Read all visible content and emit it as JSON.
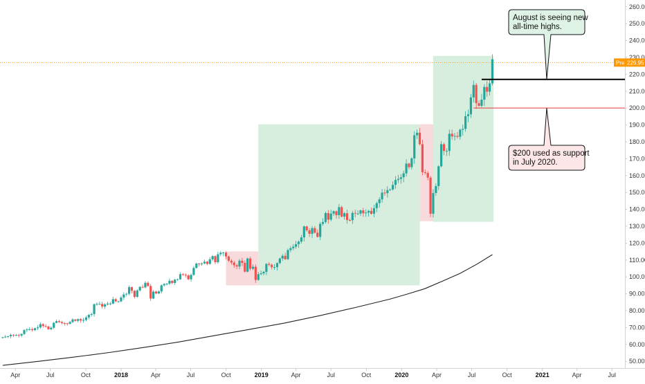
{
  "chart_data": {
    "type": "candlestick",
    "title": "",
    "xlabel": "",
    "ylabel": "",
    "y_range": [
      46,
      264
    ],
    "x_range": [
      "2017-02-20",
      "2021-09-25"
    ],
    "y_ticks": [
      "50.00",
      "60.00",
      "70.00",
      "80.00",
      "90.00",
      "100.00",
      "110.00",
      "120.00",
      "130.00",
      "140.00",
      "150.00",
      "160.00",
      "170.00",
      "180.00",
      "190.00",
      "200.00",
      "210.00",
      "220.00",
      "230.00",
      "240.00",
      "250.00",
      "260.00"
    ],
    "x_ticks": [
      {
        "label": "Apr",
        "date": "2017-04-01",
        "bold": false
      },
      {
        "label": "Jul",
        "date": "2017-07-01",
        "bold": false
      },
      {
        "label": "Oct",
        "date": "2017-10-01",
        "bold": false
      },
      {
        "label": "2018",
        "date": "2018-01-01",
        "bold": true
      },
      {
        "label": "Apr",
        "date": "2018-04-01",
        "bold": false
      },
      {
        "label": "Jul",
        "date": "2018-07-01",
        "bold": false
      },
      {
        "label": "Oct",
        "date": "2018-10-01",
        "bold": false
      },
      {
        "label": "2019",
        "date": "2019-01-01",
        "bold": true
      },
      {
        "label": "Apr",
        "date": "2019-04-01",
        "bold": false
      },
      {
        "label": "Jul",
        "date": "2019-07-01",
        "bold": false
      },
      {
        "label": "Oct",
        "date": "2019-10-01",
        "bold": false
      },
      {
        "label": "2020",
        "date": "2020-01-01",
        "bold": true
      },
      {
        "label": "Apr",
        "date": "2020-04-01",
        "bold": false
      },
      {
        "label": "Jul",
        "date": "2020-07-01",
        "bold": false
      },
      {
        "label": "Oct",
        "date": "2020-10-01",
        "bold": false
      },
      {
        "label": "2021",
        "date": "2021-01-01",
        "bold": true
      },
      {
        "label": "Apr",
        "date": "2021-04-01",
        "bold": false
      },
      {
        "label": "Jul",
        "date": "2021-07-01",
        "bold": false
      }
    ],
    "price_series": [
      [
        "2017-02-27",
        64.3
      ],
      [
        "2017-03-06",
        64.6
      ],
      [
        "2017-03-13",
        64.9
      ],
      [
        "2017-03-20",
        65.6
      ],
      [
        "2017-03-27",
        65.4
      ],
      [
        "2017-04-03",
        65.6
      ],
      [
        "2017-04-10",
        65.3
      ],
      [
        "2017-04-17",
        66.2
      ],
      [
        "2017-04-24",
        68.5
      ],
      [
        "2017-05-01",
        68.9
      ],
      [
        "2017-05-08",
        69.0
      ],
      [
        "2017-05-15",
        68.5
      ],
      [
        "2017-05-22",
        69.6
      ],
      [
        "2017-05-29",
        70.1
      ],
      [
        "2017-06-05",
        72.0
      ],
      [
        "2017-06-12",
        70.9
      ],
      [
        "2017-06-19",
        70.6
      ],
      [
        "2017-06-26",
        69.0
      ],
      [
        "2017-07-03",
        69.9
      ],
      [
        "2017-07-10",
        72.8
      ],
      [
        "2017-07-17",
        73.8
      ],
      [
        "2017-07-24",
        73.2
      ],
      [
        "2017-07-31",
        72.6
      ],
      [
        "2017-08-07",
        72.5
      ],
      [
        "2017-08-14",
        72.3
      ],
      [
        "2017-08-21",
        73.3
      ],
      [
        "2017-08-28",
        74.8
      ],
      [
        "2017-09-04",
        74.0
      ],
      [
        "2017-09-11",
        75.0
      ],
      [
        "2017-09-18",
        74.2
      ],
      [
        "2017-09-25",
        74.5
      ],
      [
        "2017-10-02",
        76.0
      ],
      [
        "2017-10-09",
        77.5
      ],
      [
        "2017-10-16",
        78.0
      ],
      [
        "2017-10-23",
        83.8
      ],
      [
        "2017-10-30",
        84.0
      ],
      [
        "2017-11-06",
        84.0
      ],
      [
        "2017-11-13",
        82.4
      ],
      [
        "2017-11-20",
        83.7
      ],
      [
        "2017-11-27",
        84.2
      ],
      [
        "2017-12-04",
        84.2
      ],
      [
        "2017-12-11",
        86.8
      ],
      [
        "2017-12-18",
        85.5
      ],
      [
        "2017-12-25",
        85.5
      ],
      [
        "2018-01-01",
        87.8
      ],
      [
        "2018-01-08",
        89.6
      ],
      [
        "2018-01-15",
        90.0
      ],
      [
        "2018-01-22",
        93.9
      ],
      [
        "2018-01-29",
        91.8
      ],
      [
        "2018-02-05",
        88.2
      ],
      [
        "2018-02-12",
        92.0
      ],
      [
        "2018-02-19",
        94.1
      ],
      [
        "2018-02-26",
        93.8
      ],
      [
        "2018-03-05",
        96.5
      ],
      [
        "2018-03-12",
        94.6
      ],
      [
        "2018-03-19",
        87.2
      ],
      [
        "2018-03-26",
        91.3
      ],
      [
        "2018-04-02",
        90.2
      ],
      [
        "2018-04-09",
        91.4
      ],
      [
        "2018-04-16",
        95.0
      ],
      [
        "2018-04-23",
        95.8
      ],
      [
        "2018-04-30",
        96.0
      ],
      [
        "2018-05-07",
        97.7
      ],
      [
        "2018-05-14",
        96.4
      ],
      [
        "2018-05-21",
        98.4
      ],
      [
        "2018-05-28",
        98.6
      ],
      [
        "2018-06-04",
        101.6
      ],
      [
        "2018-06-11",
        101.3
      ],
      [
        "2018-06-18",
        100.9
      ],
      [
        "2018-06-25",
        98.6
      ],
      [
        "2018-07-02",
        101.2
      ],
      [
        "2018-07-09",
        105.3
      ],
      [
        "2018-07-16",
        107.9
      ],
      [
        "2018-07-23",
        107.7
      ],
      [
        "2018-07-30",
        108.0
      ],
      [
        "2018-08-06",
        109.0
      ],
      [
        "2018-08-13",
        107.7
      ],
      [
        "2018-08-20",
        110.4
      ],
      [
        "2018-08-27",
        112.3
      ],
      [
        "2018-09-03",
        108.7
      ],
      [
        "2018-09-10",
        113.4
      ],
      [
        "2018-09-17",
        114.3
      ],
      [
        "2018-09-24",
        114.4
      ],
      [
        "2018-10-01",
        112.1
      ],
      [
        "2018-10-08",
        109.6
      ],
      [
        "2018-10-15",
        108.5
      ],
      [
        "2018-10-22",
        106.9
      ],
      [
        "2018-10-29",
        106.2
      ],
      [
        "2018-11-05",
        109.6
      ],
      [
        "2018-11-12",
        108.3
      ],
      [
        "2018-11-19",
        103.1
      ],
      [
        "2018-11-26",
        110.9
      ],
      [
        "2018-12-03",
        104.8
      ],
      [
        "2018-12-10",
        106.0
      ],
      [
        "2018-12-17",
        98.2
      ],
      [
        "2018-12-24",
        101.6
      ],
      [
        "2018-12-31",
        102.1
      ],
      [
        "2019-01-07",
        103.0
      ],
      [
        "2019-01-14",
        107.7
      ],
      [
        "2019-01-21",
        107.2
      ],
      [
        "2019-01-28",
        105.7
      ],
      [
        "2019-02-04",
        105.8
      ],
      [
        "2019-02-11",
        108.2
      ],
      [
        "2019-02-18",
        110.9
      ],
      [
        "2019-02-25",
        112.5
      ],
      [
        "2019-03-04",
        110.5
      ],
      [
        "2019-03-11",
        115.9
      ],
      [
        "2019-03-18",
        117.0
      ],
      [
        "2019-03-25",
        117.9
      ],
      [
        "2019-04-01",
        119.4
      ],
      [
        "2019-04-08",
        120.9
      ],
      [
        "2019-04-15",
        123.4
      ],
      [
        "2019-04-22",
        129.9
      ],
      [
        "2019-04-29",
        127.6
      ],
      [
        "2019-05-06",
        125.5
      ],
      [
        "2019-05-13",
        128.9
      ],
      [
        "2019-05-20",
        126.2
      ],
      [
        "2019-05-27",
        123.7
      ],
      [
        "2019-06-03",
        131.4
      ],
      [
        "2019-06-10",
        132.5
      ],
      [
        "2019-06-17",
        137.8
      ],
      [
        "2019-06-24",
        133.9
      ],
      [
        "2019-07-01",
        137.5
      ],
      [
        "2019-07-08",
        138.9
      ],
      [
        "2019-07-15",
        136.6
      ],
      [
        "2019-07-22",
        141.3
      ],
      [
        "2019-07-29",
        135.7
      ],
      [
        "2019-08-05",
        137.7
      ],
      [
        "2019-08-12",
        133.7
      ],
      [
        "2019-08-19",
        133.6
      ],
      [
        "2019-08-26",
        137.9
      ],
      [
        "2019-09-02",
        137.5
      ],
      [
        "2019-09-09",
        137.5
      ],
      [
        "2019-09-16",
        139.4
      ],
      [
        "2019-09-23",
        137.7
      ],
      [
        "2019-09-30",
        138.1
      ],
      [
        "2019-10-07",
        139.1
      ],
      [
        "2019-10-14",
        137.4
      ],
      [
        "2019-10-21",
        140.7
      ],
      [
        "2019-10-28",
        143.7
      ],
      [
        "2019-11-04",
        145.9
      ],
      [
        "2019-11-11",
        149.9
      ],
      [
        "2019-11-18",
        149.6
      ],
      [
        "2019-11-25",
        151.4
      ],
      [
        "2019-12-02",
        151.8
      ],
      [
        "2019-12-09",
        154.5
      ],
      [
        "2019-12-16",
        157.4
      ],
      [
        "2019-12-23",
        158.0
      ],
      [
        "2019-12-30",
        159.0
      ],
      [
        "2020-01-06",
        161.3
      ],
      [
        "2020-01-13",
        167.1
      ],
      [
        "2020-01-20",
        165.0
      ],
      [
        "2020-01-27",
        170.2
      ],
      [
        "2020-02-03",
        183.9
      ],
      [
        "2020-02-10",
        185.4
      ],
      [
        "2020-02-17",
        178.6
      ],
      [
        "2020-02-24",
        162.0
      ],
      [
        "2020-03-02",
        161.6
      ],
      [
        "2020-03-09",
        158.8
      ],
      [
        "2020-03-16",
        137.4
      ],
      [
        "2020-03-23",
        149.7
      ],
      [
        "2020-03-30",
        153.8
      ],
      [
        "2020-04-06",
        165.5
      ],
      [
        "2020-04-13",
        178.6
      ],
      [
        "2020-04-20",
        174.6
      ],
      [
        "2020-04-27",
        174.6
      ],
      [
        "2020-05-04",
        184.8
      ],
      [
        "2020-05-11",
        183.2
      ],
      [
        "2020-05-18",
        183.5
      ],
      [
        "2020-05-25",
        183.0
      ],
      [
        "2020-06-01",
        187.2
      ],
      [
        "2020-06-08",
        187.7
      ],
      [
        "2020-06-15",
        195.2
      ],
      [
        "2020-06-22",
        196.3
      ],
      [
        "2020-06-29",
        206.3
      ],
      [
        "2020-07-06",
        213.7
      ],
      [
        "2020-07-13",
        202.9
      ],
      [
        "2020-07-20",
        201.3
      ],
      [
        "2020-07-27",
        205.0
      ],
      [
        "2020-08-03",
        212.5
      ],
      [
        "2020-08-10",
        209.7
      ],
      [
        "2020-08-17",
        214.6
      ],
      [
        "2020-08-24",
        228.9
      ]
    ],
    "moving_average": [
      [
        "2017-02-27",
        47.6
      ],
      [
        "2017-06-01",
        50.0
      ],
      [
        "2017-09-01",
        52.5
      ],
      [
        "2017-12-01",
        55.2
      ],
      [
        "2018-03-01",
        58.2
      ],
      [
        "2018-06-01",
        61.5
      ],
      [
        "2018-09-01",
        65.2
      ],
      [
        "2018-12-01",
        68.9
      ],
      [
        "2019-03-01",
        72.6
      ],
      [
        "2019-06-01",
        77.0
      ],
      [
        "2019-09-01",
        81.8
      ],
      [
        "2019-12-01",
        86.8
      ],
      [
        "2020-01-15",
        89.8
      ],
      [
        "2020-03-01",
        93.0
      ],
      [
        "2020-04-15",
        97.4
      ],
      [
        "2020-06-01",
        102.1
      ],
      [
        "2020-07-15",
        107.6
      ],
      [
        "2020-08-24",
        113.2
      ]
    ],
    "zones": [
      {
        "start": "2018-10-01",
        "end": "2018-12-24",
        "low": 95.0,
        "high": 115.1,
        "color": "#f8d9dc"
      },
      {
        "start": "2018-12-24",
        "end": "2020-02-17",
        "low": 95.0,
        "high": 190.4,
        "color": "#d7eedf"
      },
      {
        "start": "2020-02-17",
        "end": "2020-03-30",
        "low": 133.0,
        "high": 190.4,
        "color": "#f8d9dc"
      },
      {
        "start": "2020-03-23",
        "end": "2020-08-27",
        "low": 132.6,
        "high": 230.9,
        "color": "#d7eedf"
      }
    ],
    "lines": [
      {
        "name": "ath-line",
        "value": 217.0,
        "start": "2020-07-27",
        "color": "#000000"
      },
      {
        "name": "support-line",
        "value": 200.0,
        "start": "2020-07-06",
        "color": "#e53935"
      }
    ],
    "last_price": {
      "label": "Pre",
      "value": "226.95",
      "color": "#ff9800"
    },
    "annotations": [
      {
        "name": "callout-ath",
        "lines": [
          "August is seeing new",
          "all-time highs."
        ],
        "fill": "#dff2e6"
      },
      {
        "name": "callout-support",
        "lines": [
          "$200 used as support",
          "in July 2020."
        ],
        "fill": "#fde6e8"
      }
    ],
    "colors": {
      "up": "#26a69a",
      "down": "#ef5350",
      "ma": "#222222",
      "zone_green": "#d7eedf",
      "zone_red": "#f8d9dc"
    },
    "grid": false,
    "legend": "none"
  }
}
